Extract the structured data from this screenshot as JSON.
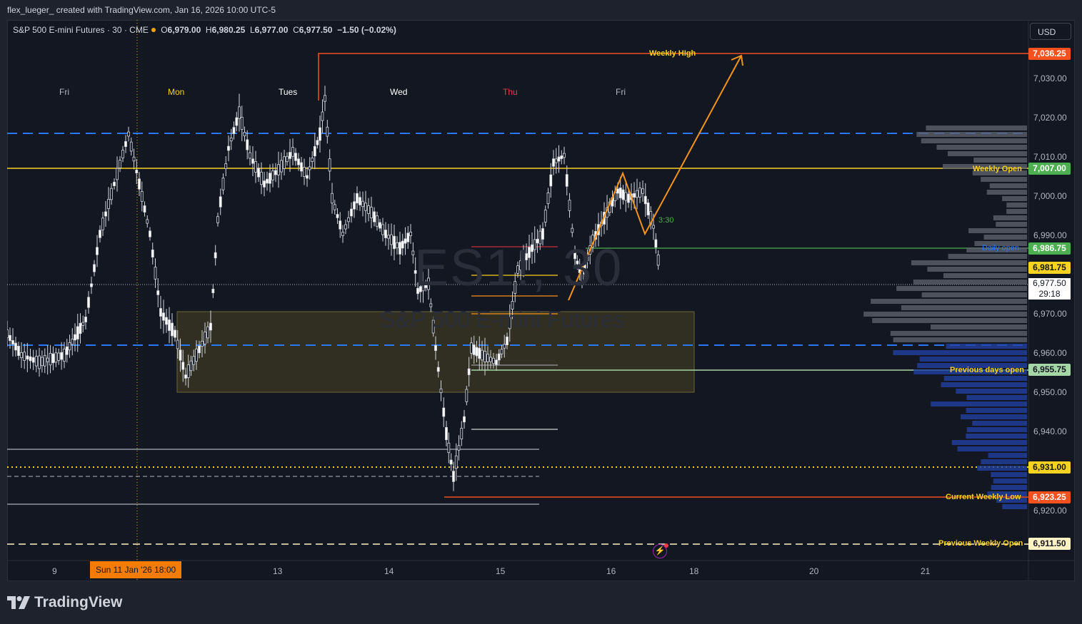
{
  "header": {
    "credit": "flex_lueger_ created with TradingView.com, Jan 16, 2026 10:00 UTC-5"
  },
  "symbol": {
    "name": "S&P 500 E-mini Futures · 30 · CME",
    "o_label": "O",
    "o": "6,979.00",
    "h_label": "H",
    "h": "6,980.25",
    "l_label": "L",
    "l": "6,977.00",
    "c_label": "C",
    "c": "6,977.50",
    "change": "−1.50 (−0.02%)"
  },
  "currency_button": "USD",
  "watermark": {
    "ticker": "ES1!, 30",
    "description": "S&P 500 E-mini Futures"
  },
  "day_labels": [
    {
      "text": "Fri",
      "color": "#b2b5be"
    },
    {
      "text": "Mon",
      "color": "#f7d21e"
    },
    {
      "text": "Tues",
      "color": "#ffffff"
    },
    {
      "text": "Wed",
      "color": "#ffffff"
    },
    {
      "text": "Thu",
      "color": "#f23645"
    },
    {
      "text": "Fri",
      "color": "#b2b5be"
    }
  ],
  "x_axis": {
    "labels": [
      "9",
      "13",
      "14",
      "15",
      "16",
      "18",
      "20",
      "21"
    ],
    "crosshair_badge": "Sun 11 Jan '26   18:00"
  },
  "y_axis": {
    "labels": [
      "7,030.00",
      "7,020.00",
      "7,010.00",
      "7,000.00",
      "6,990.00",
      "6,970.00",
      "6,960.00",
      "6,950.00",
      "6,940.00",
      "6,920.00"
    ]
  },
  "price_badges": [
    {
      "value": "7,036.25",
      "bg": "#f4511e",
      "fg": "#ffffff"
    },
    {
      "value": "7,007.00",
      "bg": "#4caf50",
      "fg": "#ffffff"
    },
    {
      "value": "6,986.75",
      "bg": "#4caf50",
      "fg": "#ffffff"
    },
    {
      "value": "6,981.75",
      "bg": "#f7d21e",
      "fg": "#131722"
    },
    {
      "value": "6,977.50",
      "bg": "#ffffff",
      "fg": "#131722"
    },
    {
      "value": "6,955.75",
      "bg": "#a5d6a7",
      "fg": "#131722"
    },
    {
      "value": "6,931.00",
      "bg": "#f7d21e",
      "fg": "#131722"
    },
    {
      "value": "6,923.25",
      "bg": "#f4511e",
      "fg": "#ffffff"
    },
    {
      "value": "6,911.50",
      "bg": "#fff3c4",
      "fg": "#131722"
    }
  ],
  "countdown": "29:18",
  "level_labels": {
    "weekly_high": "Weekly HIgh",
    "weekly_open": "Weekly Open",
    "daily_open": "Daily open",
    "previous_days_open": "Previous days open",
    "current_weekly_low": "Current Weekly Low",
    "previous_weekly_open": "Previous Weekly Open"
  },
  "timer_text": "3:30",
  "brand": "TradingView",
  "colors": {
    "background": "#131722",
    "weekly_high": "#f4511e",
    "weekly_open": "#f7d21e",
    "daily_open": "#4caf50",
    "dashed_blue": "#2962ff",
    "projection": "#f7931a",
    "volume_profile_up": "#5d606b",
    "volume_profile_down": "#2240a0"
  }
}
